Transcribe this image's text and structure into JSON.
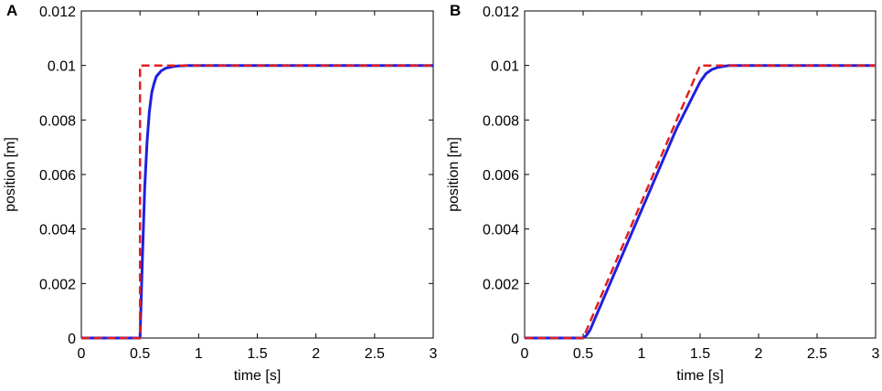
{
  "colors": {
    "measured": "#1f1fe0",
    "reference": "#e01f1f",
    "axis": "#000000"
  },
  "chart_data": [
    {
      "panel": "A",
      "type": "line",
      "xlabel": "time [s]",
      "ylabel": "position [m]",
      "xlim": [
        0,
        3
      ],
      "ylim": [
        0,
        0.012
      ],
      "xticks": [
        0,
        0.5,
        1,
        1.5,
        2,
        2.5,
        3
      ],
      "xtick_labels": [
        "0",
        "0.5",
        "1",
        "1.5",
        "2",
        "2.5",
        "3"
      ],
      "yticks": [
        0,
        0.002,
        0.004,
        0.006,
        0.008,
        0.01,
        0.012
      ],
      "ytick_labels": [
        "0",
        "0.002",
        "0.004",
        "0.006",
        "0.008",
        "0.01",
        "0.012"
      ],
      "grid": false,
      "series": [
        {
          "style": "dashed",
          "color": "#e01f1f",
          "x": [
            0,
            0.5,
            0.5,
            3
          ],
          "y": [
            0,
            0,
            0.01,
            0.01
          ]
        },
        {
          "style": "solid",
          "color": "#1f1fe0",
          "x": [
            0,
            0.5,
            0.52,
            0.54,
            0.56,
            0.58,
            0.6,
            0.62,
            0.64,
            0.66,
            0.68,
            0.7,
            0.72,
            0.75,
            0.78,
            0.82,
            0.86,
            0.9,
            1.0,
            3
          ],
          "y": [
            0,
            0,
            0.0028,
            0.0055,
            0.0072,
            0.0083,
            0.009,
            0.00935,
            0.0096,
            0.0097,
            0.0098,
            0.00985,
            0.0099,
            0.00993,
            0.00996,
            0.00998,
            0.00999,
            0.01,
            0.01,
            0.01
          ]
        }
      ]
    },
    {
      "panel": "B",
      "type": "line",
      "xlabel": "time [s]",
      "ylabel": "position [m]",
      "xlim": [
        0,
        3
      ],
      "ylim": [
        0,
        0.012
      ],
      "xticks": [
        0,
        0.5,
        1,
        1.5,
        2,
        2.5,
        3
      ],
      "xtick_labels": [
        "0",
        "0.5",
        "1",
        "1.5",
        "2",
        "2.5",
        "3"
      ],
      "yticks": [
        0,
        0.002,
        0.004,
        0.006,
        0.008,
        0.01,
        0.012
      ],
      "ytick_labels": [
        "0",
        "0.002",
        "0.004",
        "0.006",
        "0.008",
        "0.01",
        "0.012"
      ],
      "grid": false,
      "series": [
        {
          "style": "dashed",
          "color": "#e01f1f",
          "x": [
            0,
            0.5,
            1.5,
            3
          ],
          "y": [
            0,
            0,
            0.01,
            0.01
          ]
        },
        {
          "style": "solid",
          "color": "#1f1fe0",
          "x": [
            0,
            0.5,
            0.53,
            0.56,
            0.6,
            0.65,
            0.7,
            1.0,
            1.3,
            1.5,
            1.55,
            1.6,
            1.65,
            1.7,
            1.75,
            3
          ],
          "y": [
            0,
            0,
            0.0001,
            0.0003,
            0.0007,
            0.0012,
            0.0017,
            0.0047,
            0.0077,
            0.0094,
            0.0097,
            0.00985,
            0.00993,
            0.00997,
            0.01,
            0.01
          ]
        }
      ]
    }
  ]
}
